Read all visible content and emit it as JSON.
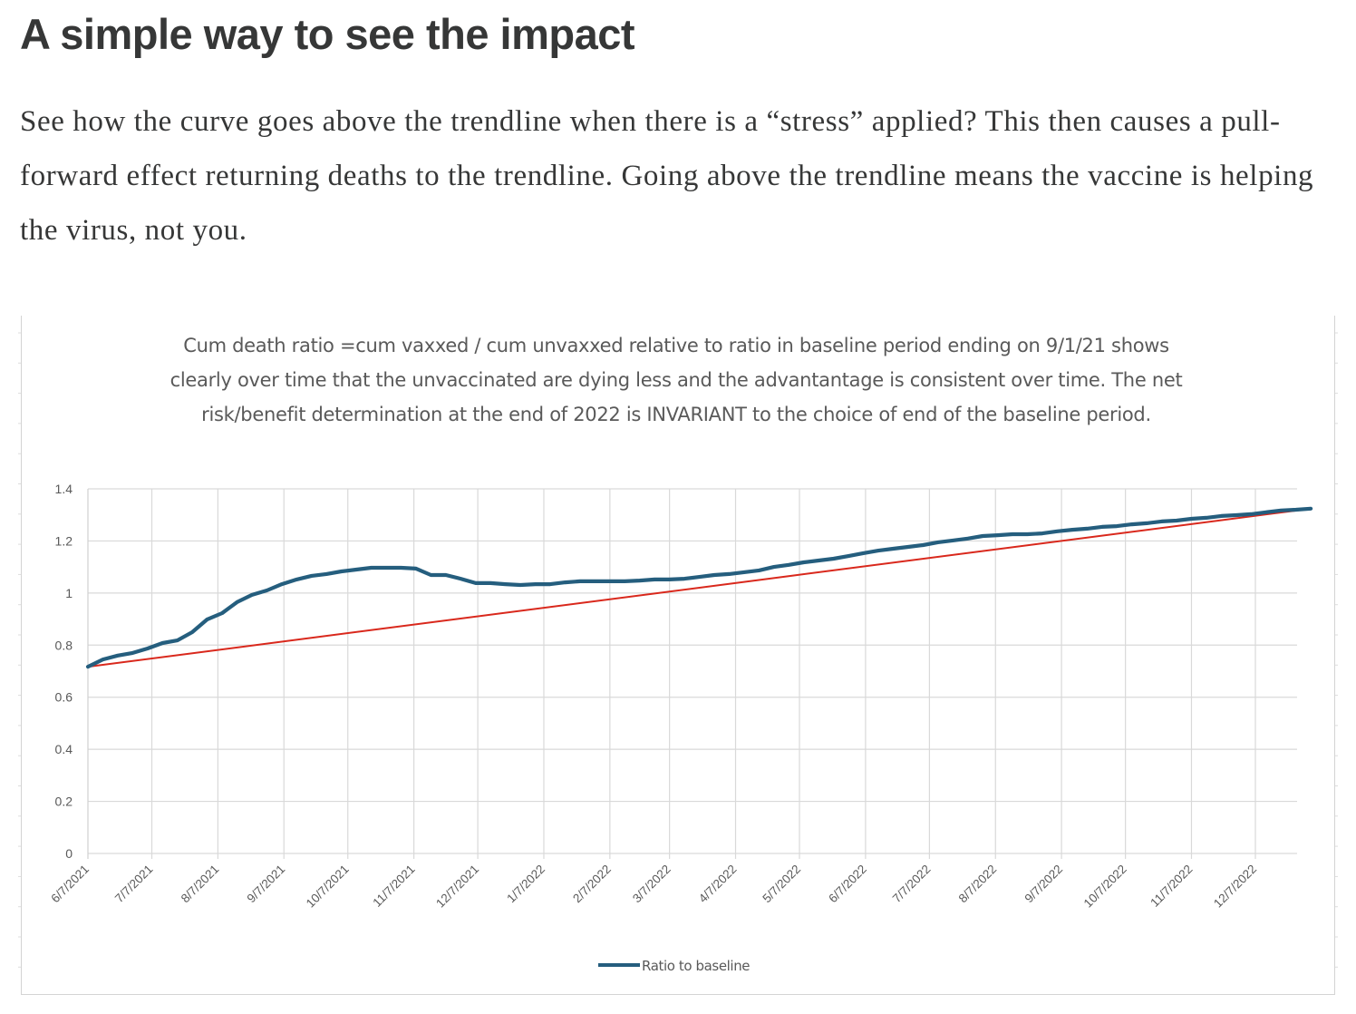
{
  "article": {
    "heading": "A simple way to see the impact",
    "paragraph": "See how the curve goes above the trendline when there is a “stress” applied? This then causes a pull-forward effect returning deaths to the trendline. Going above the trendline means the vaccine is helping the virus, not you."
  },
  "chart_data": {
    "type": "line",
    "title": "Cum death ratio =cum vaxxed / cum unvaxxed relative to ratio in baseline period ending on 9/1/21 shows clearly over time that the unvaccinated are dying less and the advantantage is consistent over time. The net risk/benefit determination at the end of 2022 is INVARIANT to the choice of end of the baseline period.",
    "xlabel": "",
    "ylabel": "",
    "ylim": [
      0,
      1.4
    ],
    "yticks": [
      "0",
      "0.2",
      "0.4",
      "0.6",
      "0.8",
      "1",
      "1.2",
      "1.4"
    ],
    "xticks": [
      "6/7/2021",
      "7/7/2021",
      "8/7/2021",
      "9/7/2021",
      "10/7/2021",
      "11/7/2021",
      "12/7/2021",
      "1/7/2022",
      "2/7/2022",
      "3/7/2022",
      "4/7/2022",
      "5/7/2022",
      "6/7/2022",
      "7/7/2022",
      "8/7/2022",
      "9/7/2022",
      "10/7/2022",
      "11/7/2022",
      "12/7/2022"
    ],
    "grid": true,
    "legend": "bottom",
    "x_start": "2021-06-07",
    "x_step_days": 7,
    "series": [
      {
        "name": "Ratio to baseline",
        "color": "#255e7e",
        "values": [
          0.717,
          0.745,
          0.76,
          0.77,
          0.787,
          0.808,
          0.818,
          0.85,
          0.899,
          0.923,
          0.965,
          0.993,
          1.01,
          1.034,
          1.052,
          1.066,
          1.073,
          1.083,
          1.09,
          1.097,
          1.097,
          1.097,
          1.094,
          1.069,
          1.069,
          1.055,
          1.038,
          1.038,
          1.034,
          1.031,
          1.034,
          1.034,
          1.041,
          1.045,
          1.045,
          1.045,
          1.045,
          1.048,
          1.052,
          1.052,
          1.055,
          1.062,
          1.069,
          1.073,
          1.08,
          1.087,
          1.1,
          1.108,
          1.118,
          1.125,
          1.132,
          1.142,
          1.153,
          1.163,
          1.17,
          1.177,
          1.184,
          1.195,
          1.202,
          1.209,
          1.219,
          1.222,
          1.226,
          1.226,
          1.229,
          1.237,
          1.243,
          1.247,
          1.254,
          1.257,
          1.264,
          1.268,
          1.275,
          1.278,
          1.285,
          1.289,
          1.296,
          1.299,
          1.303,
          1.31,
          1.317,
          1.32,
          1.324
        ]
      },
      {
        "name": "Trendline",
        "color": "#d9281c",
        "type": "linear-trend",
        "start_value": 0.717,
        "end_value": 1.324
      }
    ]
  }
}
